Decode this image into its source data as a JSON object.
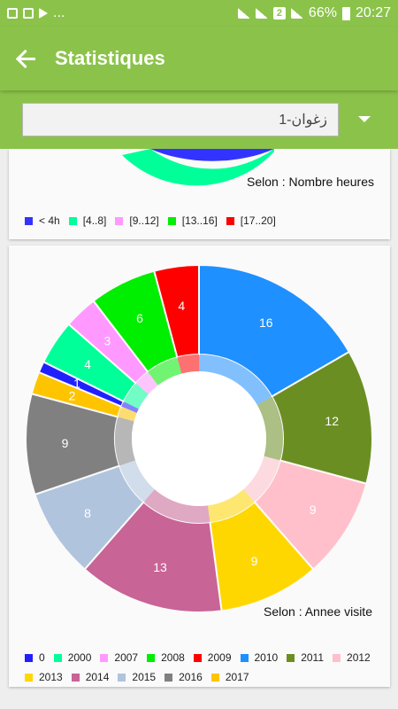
{
  "statusbar": {
    "dots": "...",
    "battery": "66%",
    "time": "20:27"
  },
  "appbar": {
    "title": "Statistiques"
  },
  "selector": {
    "value": "1-زغوان"
  },
  "card1": {
    "description": "Selon : Nombre heures",
    "legend": [
      {
        "label": "< 4h",
        "color": "#3333ff"
      },
      {
        "label": "[4..8]",
        "color": "#00ff99"
      },
      {
        "label": "[9..12]",
        "color": "#ff99ff"
      },
      {
        "label": "[13..16]",
        "color": "#00ee00"
      },
      {
        "label": "[17..20]",
        "color": "#ff0000"
      }
    ]
  },
  "card2": {
    "description": "Selon : Annee visite"
  },
  "chart_data": {
    "type": "pie",
    "donut": true,
    "description": "Selon : Annee visite",
    "slices": [
      {
        "label": "2010",
        "value": 16,
        "color": "#1e90ff"
      },
      {
        "label": "2011",
        "value": 12,
        "color": "#6b8e23"
      },
      {
        "label": "2012",
        "value": 9,
        "color": "#ffc0cb"
      },
      {
        "label": "2013",
        "value": 9,
        "color": "#ffd700"
      },
      {
        "label": "2014",
        "value": 13,
        "color": "#c86496"
      },
      {
        "label": "2015",
        "value": 8,
        "color": "#b0c4de"
      },
      {
        "label": "2016",
        "value": 9,
        "color": "#808080"
      },
      {
        "label": "2017",
        "value": 2,
        "color": "#ffc400"
      },
      {
        "label": "0",
        "value": 1,
        "color": "#2020ff"
      },
      {
        "label": "2000",
        "value": 4,
        "color": "#00ff99"
      },
      {
        "label": "2007",
        "value": 3,
        "color": "#ff99ff"
      },
      {
        "label": "2008",
        "value": 6,
        "color": "#00ee00"
      },
      {
        "label": "2009",
        "value": 4,
        "color": "#ff0000"
      }
    ],
    "legend": [
      {
        "label": "0",
        "color": "#2020ff"
      },
      {
        "label": "2000",
        "color": "#00ff99"
      },
      {
        "label": "2007",
        "color": "#ff99ff"
      },
      {
        "label": "2008",
        "color": "#00ee00"
      },
      {
        "label": "2009",
        "color": "#ff0000"
      },
      {
        "label": "2010",
        "color": "#1e90ff"
      },
      {
        "label": "2011",
        "color": "#6b8e23"
      },
      {
        "label": "2012",
        "color": "#ffc0cb"
      },
      {
        "label": "2013",
        "color": "#ffd700"
      },
      {
        "label": "2014",
        "color": "#c86496"
      },
      {
        "label": "2015",
        "color": "#b0c4de"
      },
      {
        "label": "2016",
        "color": "#808080"
      },
      {
        "label": "2017",
        "color": "#ffc400"
      }
    ]
  }
}
